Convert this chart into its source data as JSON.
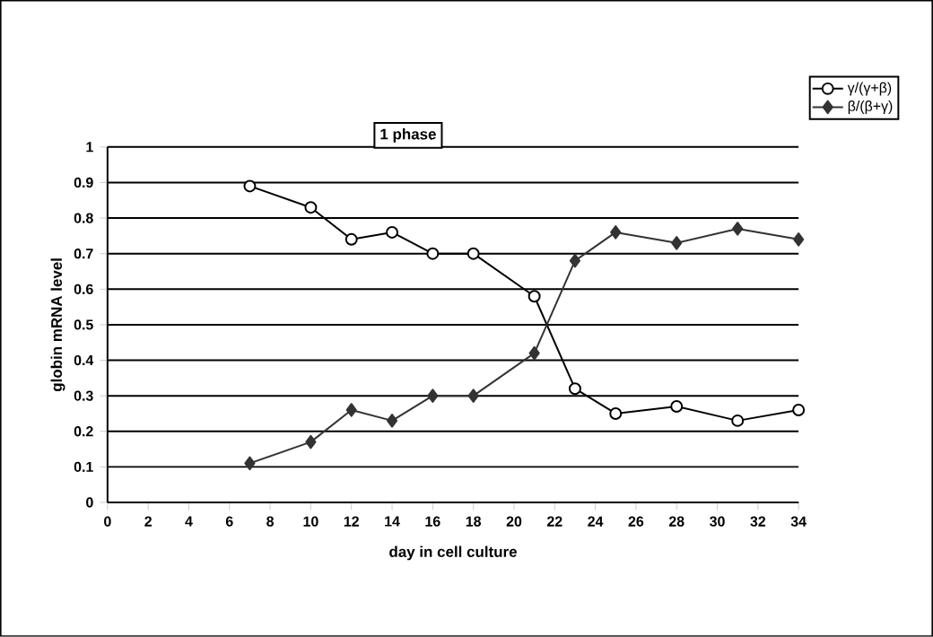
{
  "chart_data": {
    "type": "line",
    "xlabel": "day in cell culture",
    "ylabel": "globin mRNA level",
    "annotations": [
      "1 phase"
    ],
    "xlim": [
      0,
      34
    ],
    "xticks": [
      0,
      2,
      4,
      6,
      8,
      10,
      12,
      14,
      16,
      18,
      20,
      22,
      24,
      26,
      28,
      30,
      32,
      34
    ],
    "ylim": [
      0,
      1
    ],
    "yticks": [
      0,
      0.1,
      0.2,
      0.3,
      0.4,
      0.5,
      0.6,
      0.7,
      0.8,
      0.9,
      1
    ],
    "grid": "y",
    "legend": "top right",
    "series": [
      {
        "name": "γ/(γ+β)",
        "color": "#000000",
        "marker": "circle",
        "x": [
          7,
          10,
          12,
          14,
          16,
          18,
          21,
          23,
          25,
          28,
          31,
          34
        ],
        "values": [
          0.89,
          0.83,
          0.74,
          0.76,
          0.7,
          0.7,
          0.58,
          0.32,
          0.25,
          0.27,
          0.23,
          0.26
        ]
      },
      {
        "name": "β/(β+γ)",
        "color": "#333333",
        "marker": "diamond",
        "x": [
          7,
          10,
          12,
          14,
          16,
          18,
          21,
          23,
          25,
          28,
          31,
          34
        ],
        "values": [
          0.11,
          0.17,
          0.26,
          0.23,
          0.3,
          0.3,
          0.42,
          0.68,
          0.76,
          0.73,
          0.77,
          0.74
        ]
      }
    ]
  }
}
